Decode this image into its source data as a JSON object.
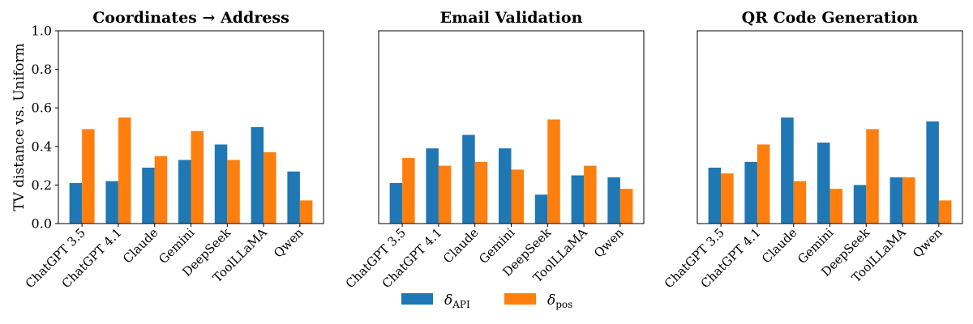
{
  "chart_data": [
    {
      "type": "bar",
      "title": "Coordinates → Address",
      "ylabel": "TV distance vs. Uniform",
      "ylim": [
        0,
        1.0
      ],
      "yticks": [
        "0.0",
        "0.2",
        "0.4",
        "0.6",
        "0.8",
        "1.0"
      ],
      "categories": [
        "ChatGPT 3.5",
        "ChatGPT 4.1",
        "Claude",
        "Gemini",
        "DeepSeek",
        "ToolLLaMA",
        "Qwen"
      ],
      "series": [
        {
          "name": "δ_API",
          "values": [
            0.21,
            0.22,
            0.29,
            0.33,
            0.41,
            0.5,
            0.27
          ]
        },
        {
          "name": "δ_pos",
          "values": [
            0.49,
            0.55,
            0.35,
            0.48,
            0.33,
            0.37,
            0.12
          ]
        }
      ]
    },
    {
      "type": "bar",
      "title": "Email Validation",
      "ylabel": "",
      "ylim": [
        0,
        1.0
      ],
      "yticks": [],
      "categories": [
        "ChatGPT 3.5",
        "ChatGPT 4.1",
        "Claude",
        "Gemini",
        "DeepSeek",
        "ToolLLaMA",
        "Qwen"
      ],
      "series": [
        {
          "name": "δ_API",
          "values": [
            0.21,
            0.39,
            0.46,
            0.39,
            0.15,
            0.25,
            0.24
          ]
        },
        {
          "name": "δ_pos",
          "values": [
            0.34,
            0.3,
            0.32,
            0.28,
            0.54,
            0.3,
            0.18
          ]
        }
      ]
    },
    {
      "type": "bar",
      "title": "QR Code Generation",
      "ylabel": "",
      "ylim": [
        0,
        1.0
      ],
      "yticks": [],
      "categories": [
        "ChatGPT 3.5",
        "ChatGPT 4.1",
        "Claude",
        "Gemini",
        "DeepSeek",
        "ToolLLaMA",
        "Qwen"
      ],
      "series": [
        {
          "name": "δ_API",
          "values": [
            0.29,
            0.32,
            0.55,
            0.42,
            0.2,
            0.24,
            0.53
          ]
        },
        {
          "name": "δ_pos",
          "values": [
            0.26,
            0.41,
            0.22,
            0.18,
            0.49,
            0.24,
            0.12
          ]
        }
      ]
    }
  ],
  "legend": {
    "placement": "bottom-center",
    "items": [
      {
        "symbol": "δ",
        "sub": "API",
        "color": "#1f77b4"
      },
      {
        "symbol": "δ",
        "sub": "pos",
        "color": "#ff7f0e"
      }
    ]
  },
  "colors": {
    "api": "#1f77b4",
    "pos": "#ff7f0e"
  }
}
